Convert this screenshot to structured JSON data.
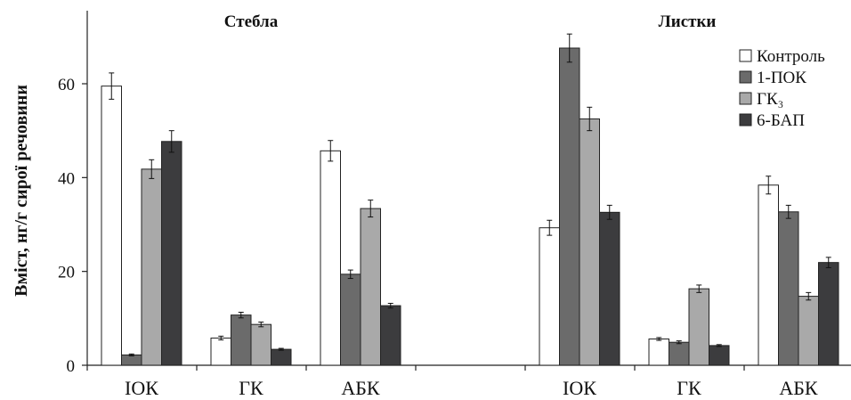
{
  "chart_data": {
    "type": "bar",
    "ylabel": "Вміст, нг/г сирої речовини",
    "ylim": [
      0,
      75
    ],
    "yticks": [
      0,
      20,
      40,
      60
    ],
    "grid": false,
    "legend_position": "top-right",
    "colors": [
      "#ffffff",
      "#6b6b6b",
      "#a9a9a9",
      "#3c3c3e"
    ],
    "groups": [
      {
        "title": "Стебла",
        "categories": [
          "ІОК",
          "ГК",
          "АБК"
        ]
      },
      {
        "title": "Листки",
        "categories": [
          "ІОК",
          "ГК",
          "АБК"
        ]
      }
    ],
    "series": [
      {
        "name": "Контроль",
        "values": [
          59.5,
          5.8,
          45.7,
          29.3,
          5.6,
          38.4
        ],
        "errors": [
          2.8,
          0.4,
          2.2,
          1.6,
          0.3,
          1.9
        ]
      },
      {
        "name": "1-ПОК",
        "values": [
          2.2,
          10.7,
          19.4,
          67.6,
          4.9,
          32.7
        ],
        "errors": [
          0.2,
          0.6,
          0.9,
          3.0,
          0.3,
          1.4
        ]
      },
      {
        "name": "ГК₃",
        "values": [
          41.8,
          8.7,
          33.4,
          52.5,
          16.3,
          14.7
        ],
        "errors": [
          2.0,
          0.5,
          1.8,
          2.5,
          0.8,
          0.8
        ]
      },
      {
        "name": "6-БАП",
        "values": [
          47.7,
          3.4,
          12.7,
          32.6,
          4.2,
          21.9
        ],
        "errors": [
          2.3,
          0.2,
          0.5,
          1.5,
          0.2,
          1.1
        ]
      }
    ]
  }
}
